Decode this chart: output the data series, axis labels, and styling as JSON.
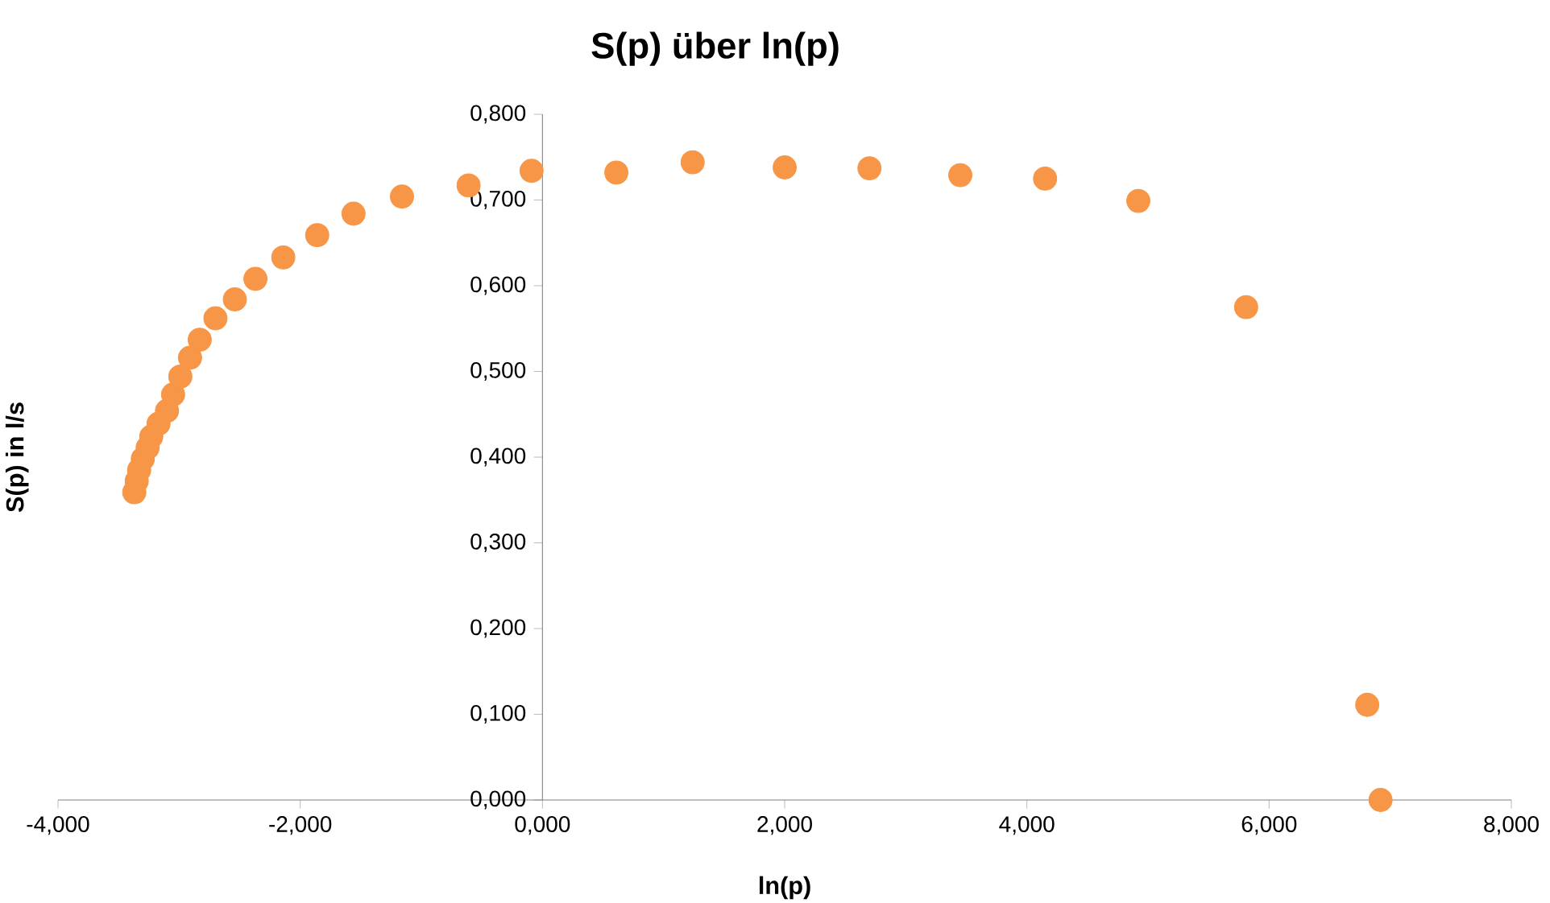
{
  "chart_data": {
    "type": "scatter",
    "title": "S(p) über ln(p)",
    "xlabel": "ln(p)",
    "ylabel": "S(p) in l/s",
    "marker": "circle",
    "color": "#f79646",
    "x": [
      -3.37,
      -3.35,
      -3.33,
      -3.3,
      -3.26,
      -3.23,
      -3.17,
      -3.1,
      -3.05,
      -2.99,
      -2.91,
      -2.83,
      -2.7,
      -2.54,
      -2.37,
      -2.14,
      -1.86,
      -1.56,
      -1.16,
      -0.61,
      -0.09,
      0.61,
      1.24,
      2.0,
      2.7,
      3.45,
      4.15,
      4.92,
      5.81,
      6.81,
      6.92
    ],
    "values": [
      0.359,
      0.372,
      0.385,
      0.398,
      0.411,
      0.424,
      0.439,
      0.454,
      0.473,
      0.494,
      0.516,
      0.537,
      0.562,
      0.584,
      0.608,
      0.633,
      0.659,
      0.684,
      0.704,
      0.717,
      0.734,
      0.732,
      0.744,
      0.738,
      0.737,
      0.729,
      0.725,
      0.699,
      0.575,
      0.111,
      0.0
    ],
    "xlim": [
      -4,
      8
    ],
    "ylim": [
      0,
      0.8
    ],
    "xticks": [
      {
        "value": -4,
        "label": "-4,000"
      },
      {
        "value": -2,
        "label": "-2,000"
      },
      {
        "value": 0,
        "label": "0,000"
      },
      {
        "value": 2,
        "label": "2,000"
      },
      {
        "value": 4,
        "label": "4,000"
      },
      {
        "value": 6,
        "label": "6,000"
      },
      {
        "value": 8,
        "label": "8,000"
      }
    ],
    "yticks": [
      {
        "value": 0,
        "label": "0,000"
      },
      {
        "value": 0.1,
        "label": "0,100"
      },
      {
        "value": 0.2,
        "label": "0,200"
      },
      {
        "value": 0.3,
        "label": "0,300"
      },
      {
        "value": 0.4,
        "label": "0,400"
      },
      {
        "value": 0.5,
        "label": "0,500"
      },
      {
        "value": 0.6,
        "label": "0,600"
      },
      {
        "value": 0.7,
        "label": "0,700"
      },
      {
        "value": 0.8,
        "label": "0,800"
      }
    ]
  }
}
